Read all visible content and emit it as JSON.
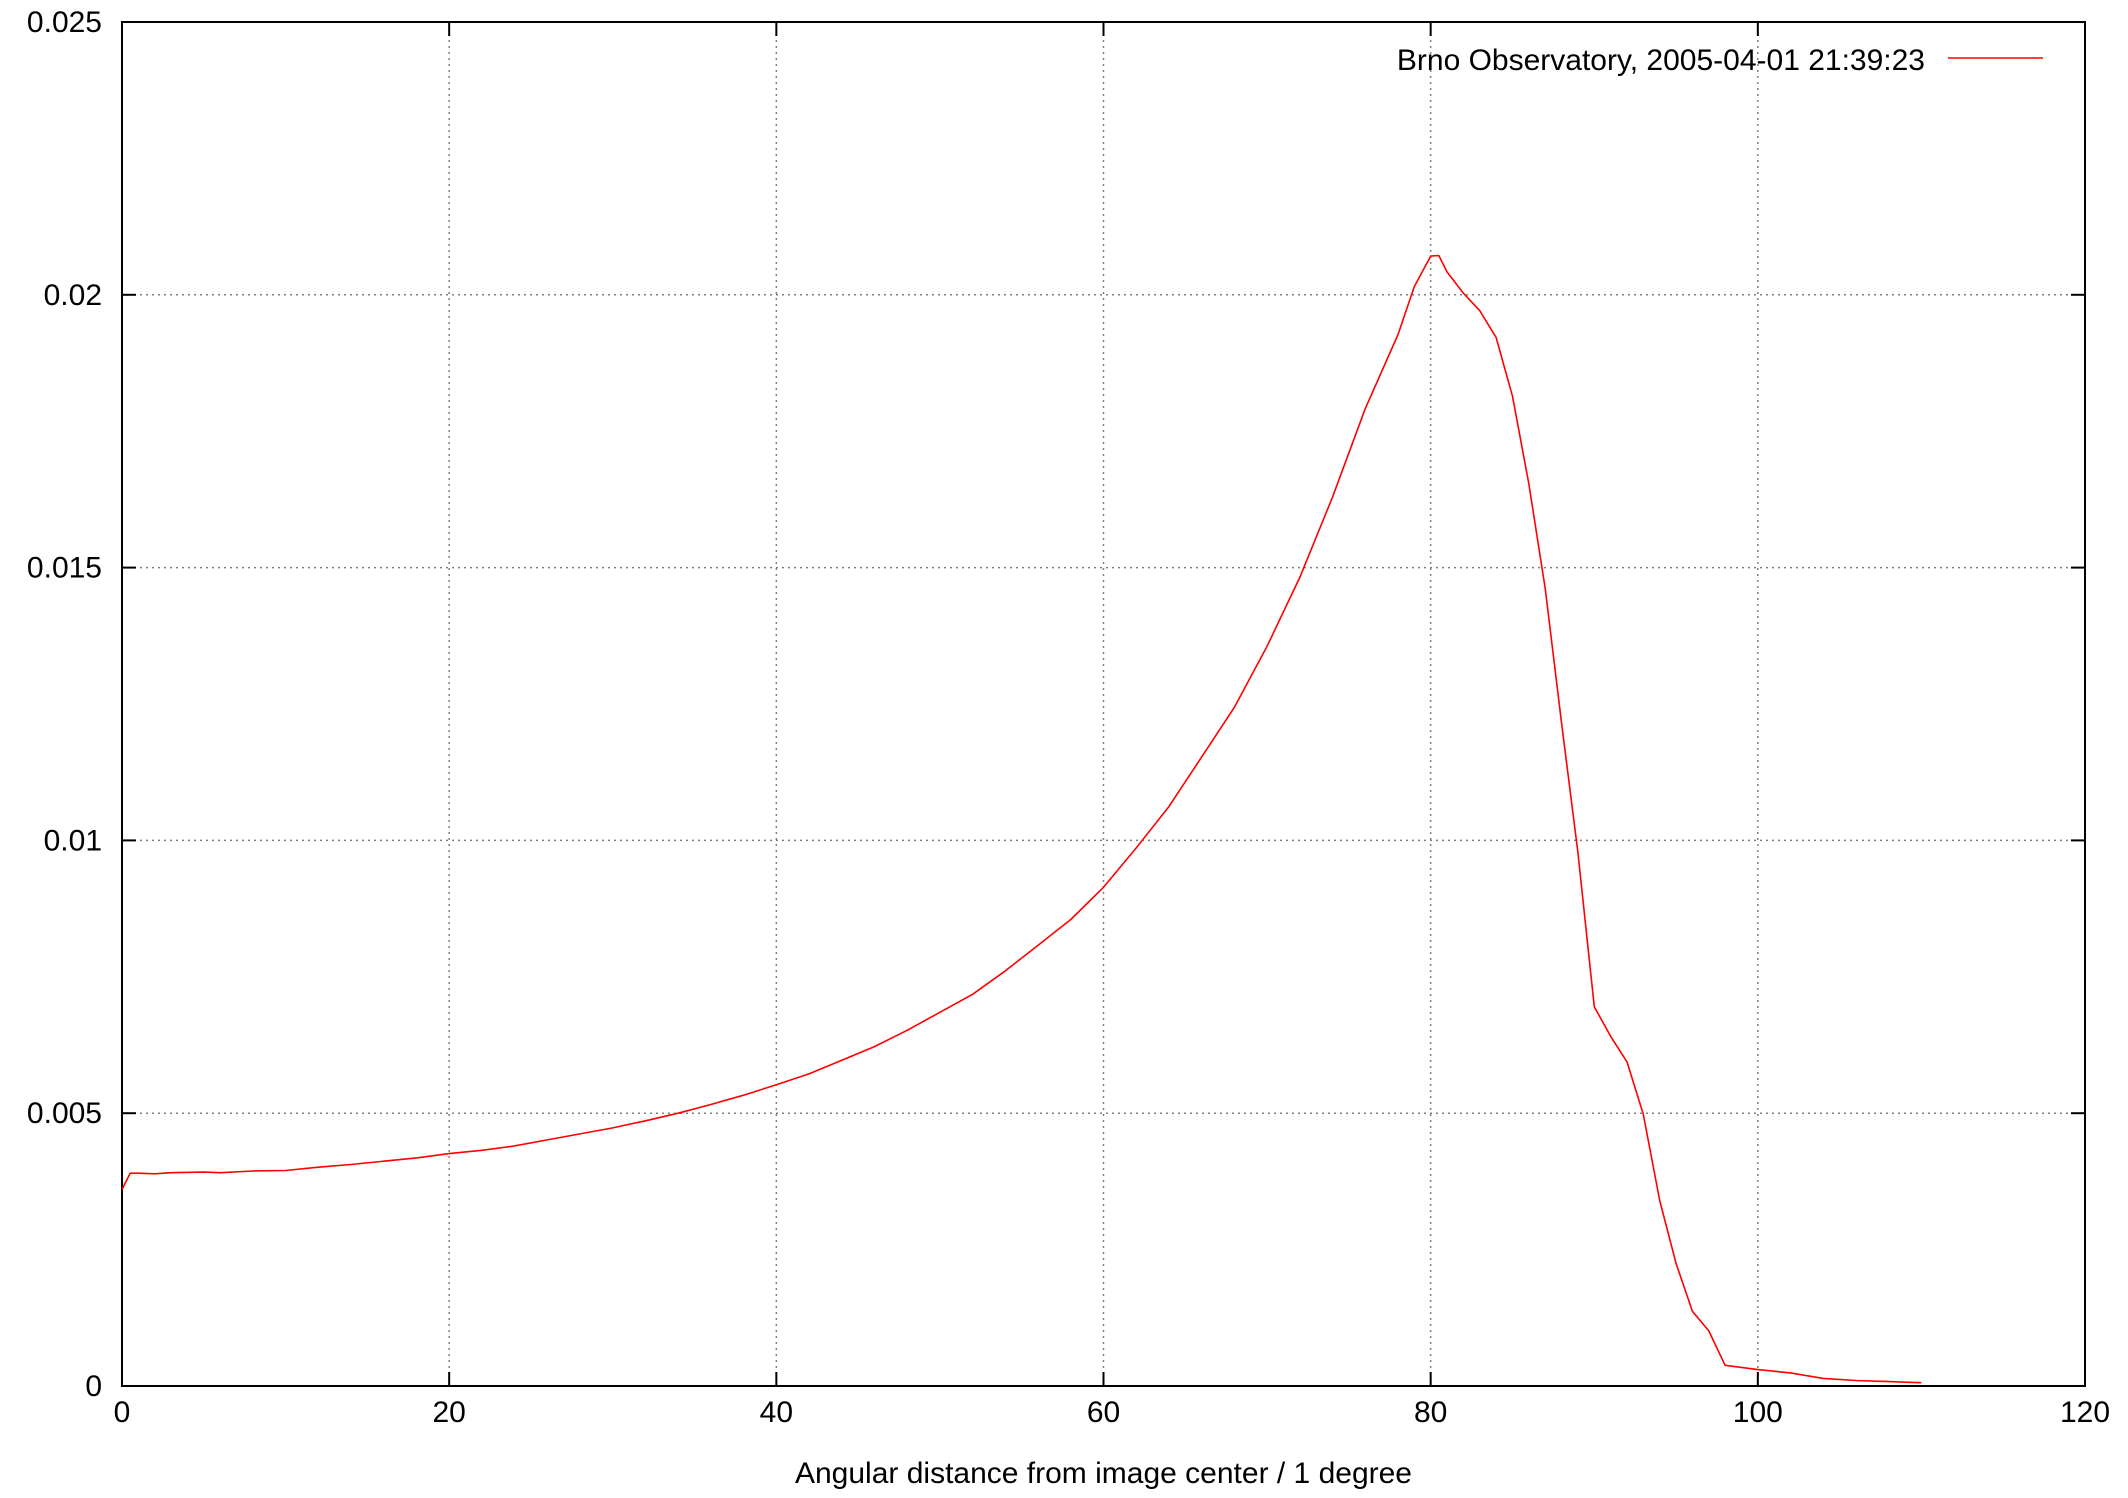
{
  "chart_data": {
    "type": "line",
    "title": "",
    "xlabel": "Angular distance from image center / 1 degree",
    "ylabel": "",
    "xlim": [
      0,
      120
    ],
    "ylim": [
      0,
      0.025
    ],
    "x_ticks": [
      0,
      20,
      40,
      60,
      80,
      100,
      120
    ],
    "y_ticks": [
      0,
      0.005,
      0.01,
      0.015,
      0.02,
      0.025
    ],
    "x_tick_labels": [
      "0",
      "20",
      "40",
      "60",
      "80",
      "100",
      "120"
    ],
    "y_tick_labels": [
      "0",
      "0.005",
      "0.01",
      "0.015",
      "0.02",
      "0.025"
    ],
    "grid": true,
    "grid_style": "dotted",
    "legend_position": "top-right",
    "series": [
      {
        "name": "Brno Observatory, 2005-04-01 21:39:23",
        "color": "#ff0000",
        "points": [
          [
            0,
            0.0036
          ],
          [
            0.5,
            0.0039
          ],
          [
            1,
            0.0039
          ],
          [
            2,
            0.00389
          ],
          [
            3,
            0.00391
          ],
          [
            5,
            0.00392
          ],
          [
            6,
            0.00391
          ],
          [
            8,
            0.00394
          ],
          [
            10,
            0.00395
          ],
          [
            12,
            0.00401
          ],
          [
            14,
            0.00406
          ],
          [
            16,
            0.00412
          ],
          [
            18,
            0.00418
          ],
          [
            20,
            0.00426
          ],
          [
            22,
            0.00432
          ],
          [
            24,
            0.0044
          ],
          [
            26,
            0.00451
          ],
          [
            28,
            0.00462
          ],
          [
            30,
            0.00473
          ],
          [
            32,
            0.00486
          ],
          [
            34,
            0.005
          ],
          [
            36,
            0.00516
          ],
          [
            38,
            0.00533
          ],
          [
            40,
            0.00552
          ],
          [
            42,
            0.00572
          ],
          [
            44,
            0.00597
          ],
          [
            46,
            0.00622
          ],
          [
            48,
            0.00652
          ],
          [
            50,
            0.00685
          ],
          [
            52,
            0.00718
          ],
          [
            54,
            0.00761
          ],
          [
            56,
            0.00808
          ],
          [
            58,
            0.00855
          ],
          [
            60,
            0.00914
          ],
          [
            62,
            0.00986
          ],
          [
            64,
            0.01062
          ],
          [
            66,
            0.01153
          ],
          [
            68,
            0.01244
          ],
          [
            70,
            0.01356
          ],
          [
            72,
            0.01482
          ],
          [
            74,
            0.01629
          ],
          [
            76,
            0.01791
          ],
          [
            78,
            0.01927
          ],
          [
            79,
            0.02015
          ],
          [
            80,
            0.02071
          ],
          [
            80.5,
            0.02072
          ],
          [
            81,
            0.02042
          ],
          [
            82,
            0.02003
          ],
          [
            83,
            0.01971
          ],
          [
            84,
            0.01922
          ],
          [
            85,
            0.01814
          ],
          [
            86,
            0.01654
          ],
          [
            87,
            0.01462
          ],
          [
            88,
            0.01216
          ],
          [
            89,
            0.00978
          ],
          [
            90,
            0.00695
          ],
          [
            91,
            0.00641
          ],
          [
            92,
            0.00594
          ],
          [
            93,
            0.00498
          ],
          [
            94,
            0.0034
          ],
          [
            95,
            0.00225
          ],
          [
            96,
            0.00137
          ],
          [
            97,
            0.00101
          ],
          [
            98,
            0.00038
          ],
          [
            100,
            0.0003
          ],
          [
            102,
            0.00024
          ],
          [
            104,
            0.00014
          ],
          [
            106,
            0.0001
          ],
          [
            108,
            8e-05
          ],
          [
            110,
            6e-05
          ]
        ]
      }
    ]
  }
}
